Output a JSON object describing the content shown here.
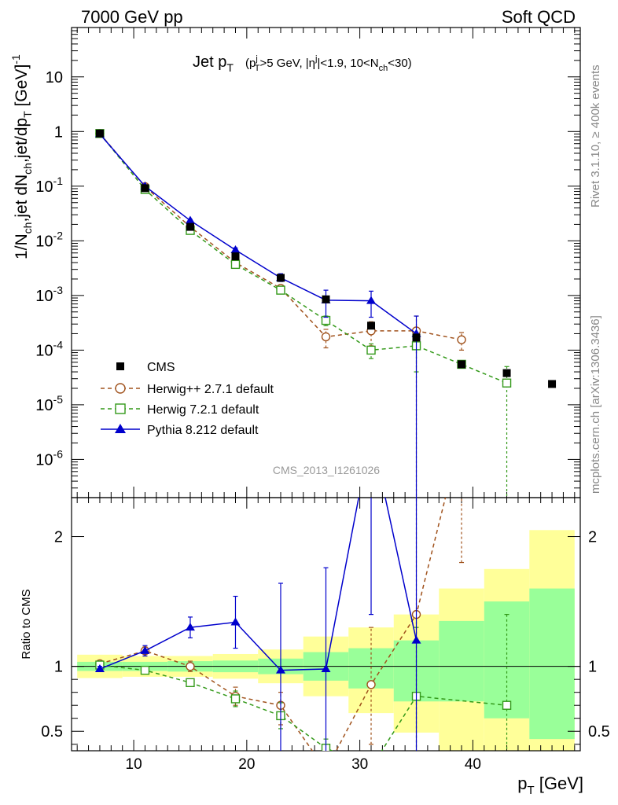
{
  "header": {
    "left": "7000 GeV pp",
    "right": "Soft QCD"
  },
  "side_labels": {
    "rivet": "Rivet 3.1.10, ≥ 400k events",
    "mcplots": "mcplots.cern.ch [arXiv:1306.3436]"
  },
  "chart_data": {
    "type": "line",
    "title_main": "Jet p",
    "title_main_sub": "T",
    "title_cuts": "(p_T^j>5 GeV, |η^j|<1.9, 10<N_ch<30)",
    "analysis_id": "CMS_2013_I1261026",
    "xlabel": "p",
    "xlabel_sub": "T",
    "xlabel_unit": "[GeV]",
    "ylabel": "1/N_ch,jet dN_ch,jet/dp_T [GeV]^-1",
    "ratio_ylabel": "Ratio to CMS",
    "xlim": [
      4.5,
      49.5
    ],
    "ylim": [
      2e-07,
      80
    ],
    "ratio_ylim": [
      0.35,
      2.3
    ],
    "x_ticks": [
      10,
      20,
      30,
      40
    ],
    "y_ticks": [
      "10^-6",
      "10^-5",
      "10^-4",
      "10^-3",
      "10^-2",
      "10^-1",
      "1",
      "10"
    ],
    "ratio_ticks": [
      0.5,
      1,
      2
    ],
    "bins": [
      5,
      9,
      13,
      17,
      21,
      25,
      29,
      33,
      37,
      41,
      45,
      49
    ],
    "ratio_band_inner": [
      {
        "lo": 0.965,
        "hi": 1.035
      },
      {
        "lo": 0.965,
        "hi": 1.035
      },
      {
        "lo": 0.96,
        "hi": 1.04
      },
      {
        "lo": 0.955,
        "hi": 1.045
      },
      {
        "lo": 0.94,
        "hi": 1.06
      },
      {
        "lo": 0.89,
        "hi": 1.11
      },
      {
        "lo": 0.83,
        "hi": 1.14
      },
      {
        "lo": 0.73,
        "hi": 1.2
      },
      {
        "lo": 0.73,
        "hi": 1.35
      },
      {
        "lo": 0.6,
        "hi": 1.5
      },
      {
        "lo": 0.44,
        "hi": 1.6
      },
      {
        "lo": 0.44,
        "hi": 1.6
      }
    ],
    "ratio_band_outer": [
      {
        "lo": 0.91,
        "hi": 1.09
      },
      {
        "lo": 0.92,
        "hi": 1.08
      },
      {
        "lo": 0.92,
        "hi": 1.08
      },
      {
        "lo": 0.905,
        "hi": 1.095
      },
      {
        "lo": 0.87,
        "hi": 1.13
      },
      {
        "lo": 0.77,
        "hi": 1.23
      },
      {
        "lo": 0.64,
        "hi": 1.3
      },
      {
        "lo": 0.49,
        "hi": 1.4
      },
      {
        "lo": 0.33,
        "hi": 1.6
      },
      {
        "lo": 0.33,
        "hi": 1.75
      },
      {
        "lo": 0.33,
        "hi": 2.05
      },
      {
        "lo": 0.33,
        "hi": 2.05
      }
    ],
    "series": [
      {
        "name": "CMS",
        "style": "data",
        "color": "#000000",
        "points": [
          {
            "x": 7,
            "y": 0.92
          },
          {
            "x": 11,
            "y": 0.092
          },
          {
            "x": 15,
            "y": 0.018
          },
          {
            "x": 19,
            "y": 0.0052
          },
          {
            "x": 23,
            "y": 0.0021
          },
          {
            "x": 27,
            "y": 0.00085
          },
          {
            "x": 31,
            "y": 0.00028
          },
          {
            "x": 35,
            "y": 0.00017
          },
          {
            "x": 39,
            "y": 5.5e-05
          },
          {
            "x": 43,
            "y": 3.8e-05
          },
          {
            "x": 47,
            "y": 2.4e-05
          }
        ],
        "ratio": []
      },
      {
        "name": "Herwig++ 2.7.1 default",
        "style": "dashed",
        "marker": "open-circle",
        "color": "#a0521c",
        "points": [
          {
            "x": 7,
            "y": 0.92,
            "elo": 0.9,
            "ehi": 0.94
          },
          {
            "x": 11,
            "y": 0.098,
            "elo": 0.095,
            "ehi": 0.101
          },
          {
            "x": 15,
            "y": 0.018,
            "elo": 0.0172,
            "ehi": 0.0188
          },
          {
            "x": 19,
            "y": 0.004,
            "elo": 0.0036,
            "ehi": 0.0044
          },
          {
            "x": 23,
            "y": 0.00135,
            "elo": 0.00115,
            "ehi": 0.00155
          },
          {
            "x": 27,
            "y": 0.000175,
            "elo": 0.00011,
            "ehi": 0.00024
          },
          {
            "x": 31,
            "y": 0.000225,
            "elo": 0.00012,
            "ehi": 0.00033
          },
          {
            "x": 35,
            "y": 0.000225,
            "elo": 0.0,
            "ehi": 0.00042
          },
          {
            "x": 39,
            "y": 0.000155,
            "elo": 0.0001,
            "ehi": 0.00021
          }
        ],
        "ratio": [
          {
            "x": 7,
            "y": 1.02,
            "elo": 1.0,
            "ehi": 1.04
          },
          {
            "x": 11,
            "y": 1.12,
            "elo": 1.08,
            "ehi": 1.15
          },
          {
            "x": 15,
            "y": 1.0,
            "elo": 0.96,
            "ehi": 1.04
          },
          {
            "x": 19,
            "y": 0.77,
            "elo": 0.7,
            "ehi": 0.84
          },
          {
            "x": 23,
            "y": 0.7,
            "elo": 0.55,
            "ehi": 0.8
          },
          {
            "x": 27,
            "y": 0.2,
            "elo": 0.1,
            "ehi": 0.3
          },
          {
            "x": 31,
            "y": 0.86,
            "elo": 0.4,
            "ehi": 1.3
          },
          {
            "x": 35,
            "y": 1.4,
            "elo": 0.2,
            "ehi": 2.4
          },
          {
            "x": 39,
            "y": 2.8,
            "elo": 1.8,
            "ehi": 3.8
          }
        ]
      },
      {
        "name": "Herwig 7.2.1 default",
        "style": "dashed",
        "marker": "open-square",
        "color": "#339919",
        "points": [
          {
            "x": 7,
            "y": 0.92,
            "elo": 0.9,
            "ehi": 0.94
          },
          {
            "x": 11,
            "y": 0.087,
            "elo": 0.084,
            "ehi": 0.09
          },
          {
            "x": 15,
            "y": 0.0155,
            "elo": 0.0148,
            "ehi": 0.0162
          },
          {
            "x": 19,
            "y": 0.0037,
            "elo": 0.0034,
            "ehi": 0.004
          },
          {
            "x": 23,
            "y": 0.00125,
            "elo": 0.00108,
            "ehi": 0.00142
          },
          {
            "x": 27,
            "y": 0.00035,
            "elo": 0.00028,
            "ehi": 0.00042
          },
          {
            "x": 31,
            "y": 0.0001,
            "elo": 7e-05,
            "ehi": 0.00013
          },
          {
            "x": 35,
            "y": 0.00012,
            "elo": 4e-05,
            "ehi": 0.0002
          },
          {
            "x": 39,
            "y": 5.5e-05,
            "elo": 5e-05,
            "ehi": 6e-05
          },
          {
            "x": 43,
            "y": 2.5e-05,
            "elo": 0.0,
            "ehi": 5e-05
          }
        ],
        "ratio": [
          {
            "x": 7,
            "y": 1.01,
            "elo": 0.99,
            "ehi": 1.03
          },
          {
            "x": 11,
            "y": 0.97,
            "elo": 0.95,
            "ehi": 0.99
          },
          {
            "x": 15,
            "y": 0.875,
            "elo": 0.85,
            "ehi": 0.9
          },
          {
            "x": 19,
            "y": 0.75,
            "elo": 0.69,
            "ehi": 0.81
          },
          {
            "x": 23,
            "y": 0.62,
            "elo": 0.52,
            "ehi": 0.72
          },
          {
            "x": 27,
            "y": 0.37,
            "elo": 0.3,
            "ehi": 0.44
          },
          {
            "x": 31,
            "y": 0.22,
            "elo": 0.1,
            "ehi": 0.34
          },
          {
            "x": 35,
            "y": 0.77,
            "elo": 0.3,
            "ehi": 1.3
          },
          {
            "x": 43,
            "y": 0.7,
            "elo": 0.0,
            "ehi": 1.4
          }
        ]
      },
      {
        "name": "Pythia 8.212 default",
        "style": "solid",
        "marker": "filled-triangle",
        "color": "#0000cc",
        "points": [
          {
            "x": 7,
            "y": 0.9,
            "elo": 0.88,
            "ehi": 0.92
          },
          {
            "x": 11,
            "y": 0.1,
            "elo": 0.097,
            "ehi": 0.103
          },
          {
            "x": 15,
            "y": 0.0235,
            "elo": 0.0225,
            "ehi": 0.0245
          },
          {
            "x": 19,
            "y": 0.0068,
            "elo": 0.0062,
            "ehi": 0.0074
          },
          {
            "x": 23,
            "y": 0.0021,
            "elo": 0.0018,
            "ehi": 0.0025
          },
          {
            "x": 27,
            "y": 0.00082,
            "elo": 0.0004,
            "ehi": 0.00125
          },
          {
            "x": 31,
            "y": 0.0008,
            "elo": 0.0004,
            "ehi": 0.0012
          },
          {
            "x": 35,
            "y": 0.0002,
            "elo": 0.0,
            "ehi": 0.00042
          }
        ],
        "ratio": [
          {
            "x": 7,
            "y": 0.98,
            "elo": 0.96,
            "ehi": 1.0
          },
          {
            "x": 11,
            "y": 1.12,
            "elo": 1.08,
            "ehi": 1.16
          },
          {
            "x": 15,
            "y": 1.3,
            "elo": 1.22,
            "ehi": 1.38
          },
          {
            "x": 19,
            "y": 1.34,
            "elo": 1.14,
            "ehi": 1.54
          },
          {
            "x": 23,
            "y": 0.97,
            "elo": 0.3,
            "ehi": 1.64
          },
          {
            "x": 27,
            "y": 0.98,
            "elo": 0.2,
            "ehi": 1.76
          },
          {
            "x": 31,
            "y": 2.8,
            "elo": 1.4,
            "ehi": 4.2
          },
          {
            "x": 35,
            "y": 1.2,
            "elo": 0.0,
            "ehi": 2.4
          }
        ]
      }
    ]
  }
}
